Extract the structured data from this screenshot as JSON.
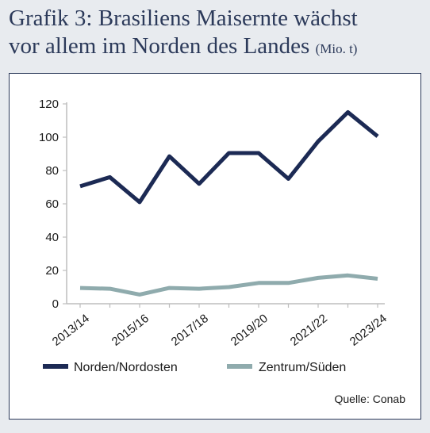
{
  "header": {
    "title_line1": "Grafik 3: Brasiliens Maisernte wächst",
    "title_line2": "vor allem im Norden des Landes",
    "unit": "(Mio. t)"
  },
  "source": "Quelle: Conab",
  "colors": {
    "north": "#1c2a54",
    "south": "#8fabad",
    "axis": "#bdbdbd",
    "text": "#1a1a1a",
    "title": "#2c3a5a"
  },
  "chart_data": {
    "type": "line",
    "title": "",
    "xlabel": "",
    "ylabel": "",
    "ylim": [
      0,
      120
    ],
    "yticks": [
      0,
      20,
      40,
      60,
      80,
      100,
      120
    ],
    "grid": false,
    "legend_position": "bottom",
    "x": [
      "2013/14",
      "2014/15",
      "2015/16",
      "2016/17",
      "2017/18",
      "2018/19",
      "2019/20",
      "2020/21",
      "2021/22",
      "2022/23",
      "2023/24"
    ],
    "xtick_labels": [
      "2013/14",
      "2015/16",
      "2017/18",
      "2019/20",
      "2021/22",
      "2023/24"
    ],
    "series": [
      {
        "name": "Norden/Nordosten",
        "values": [
          70.5,
          76,
          61,
          88.5,
          72,
          90.5,
          90.5,
          75,
          97.5,
          115,
          100.5
        ]
      },
      {
        "name": "Zentrum/Süden",
        "values": [
          9.5,
          9,
          5.5,
          9.5,
          9,
          10,
          12.5,
          12.5,
          15.5,
          17,
          15
        ]
      }
    ]
  }
}
